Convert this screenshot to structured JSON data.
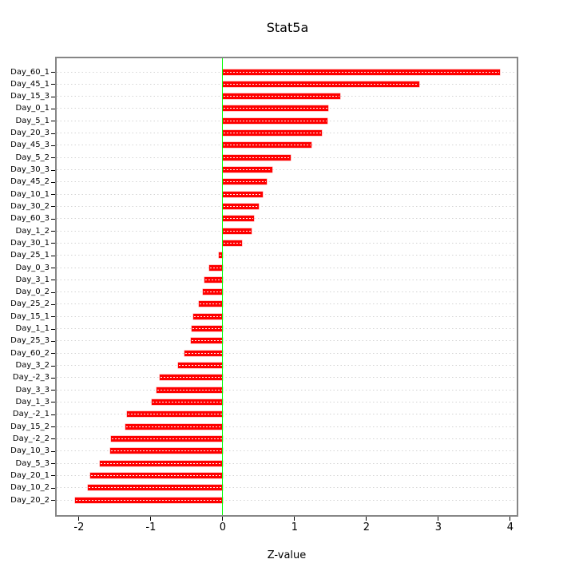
{
  "chart_data": {
    "type": "bar",
    "orientation": "horizontal",
    "title": "Stat5a",
    "xlabel": "Z-value",
    "ylabel": "",
    "categories": [
      "Day_60_1",
      "Day_45_1",
      "Day_15_3",
      "Day_0_1",
      "Day_5_1",
      "Day_20_3",
      "Day_45_3",
      "Day_5_2",
      "Day_30_3",
      "Day_45_2",
      "Day_10_1",
      "Day_30_2",
      "Day_60_3",
      "Day_1_2",
      "Day_30_1",
      "Day_25_1",
      "Day_0_3",
      "Day_3_1",
      "Day_0_2",
      "Day_25_2",
      "Day_15_1",
      "Day_1_1",
      "Day_25_3",
      "Day_60_2",
      "Day_3_2",
      "Day_-2_3",
      "Day_3_3",
      "Day_1_3",
      "Day_-2_1",
      "Day_15_2",
      "Day_-2_2",
      "Day_10_3",
      "Day_5_3",
      "Day_20_1",
      "Day_10_2",
      "Day_20_2"
    ],
    "values": [
      3.86,
      2.74,
      1.64,
      1.47,
      1.46,
      1.38,
      1.24,
      0.95,
      0.69,
      0.61,
      0.56,
      0.5,
      0.43,
      0.4,
      0.27,
      -0.05,
      -0.19,
      -0.26,
      -0.28,
      -0.33,
      -0.41,
      -0.43,
      -0.44,
      -0.53,
      -0.62,
      -0.88,
      -0.92,
      -0.99,
      -1.33,
      -1.36,
      -1.55,
      -1.57,
      -1.71,
      -1.84,
      -1.88,
      -2.06
    ],
    "x_ticks": [
      -2,
      -1,
      0,
      1,
      2,
      3,
      4
    ],
    "xlim": [
      -2.31,
      4.09
    ],
    "grid": "dotted-horizontal",
    "legend": "none",
    "zero_line": true,
    "colors": {
      "bar": "#fe0000",
      "bar_stripe": "#ffffff",
      "zero_line": "#00ff00",
      "grid": "#d4d4d4",
      "plot_border": "#868686",
      "text": "#000000",
      "background": "#ffffff"
    }
  }
}
